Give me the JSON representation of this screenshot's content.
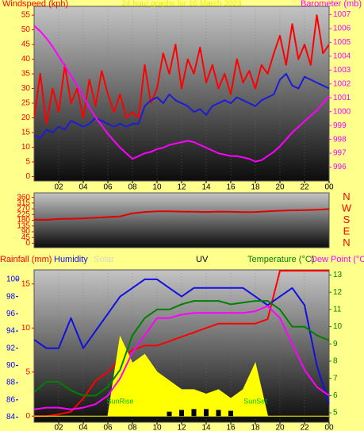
{
  "chart_data": [
    {
      "type": "line",
      "title": "24 hour graphs for 10 March 2023",
      "ylabel": "Windspeed (kph)",
      "y2label": "Barometer (mb)",
      "x": [
        0,
        0.5,
        1,
        1.5,
        2,
        2.5,
        3,
        3.5,
        4,
        4.5,
        5,
        5.5,
        6,
        6.5,
        7,
        7.5,
        8,
        8.5,
        9,
        9.5,
        10,
        10.5,
        11,
        11.5,
        12,
        12.5,
        13,
        13.5,
        14,
        14.5,
        15,
        15.5,
        16,
        16.5,
        17,
        17.5,
        18,
        18.5,
        19,
        19.5,
        20,
        20.5,
        21,
        21.5,
        22,
        22.5,
        23,
        23.5,
        24
      ],
      "xlim": [
        0,
        24
      ],
      "xticks": [
        {
          "value": 2,
          "label": "02"
        },
        {
          "value": 4,
          "label": "04"
        },
        {
          "value": 6,
          "label": "06"
        },
        {
          "value": 8,
          "label": "08"
        },
        10,
        12,
        14,
        16,
        18,
        20,
        22,
        {
          "value": 24,
          "label": "00"
        }
      ],
      "ylim": [
        -1.5,
        58
      ],
      "yticks": [
        0,
        5,
        10,
        15,
        20,
        25,
        30,
        35,
        40,
        45,
        50,
        55
      ],
      "y2lim": [
        995,
        1007.6
      ],
      "y2ticks": [
        996,
        997,
        998,
        999,
        1000,
        1001,
        1002,
        1003,
        1004,
        1005,
        1006,
        1007
      ],
      "series": [
        {
          "color": "#ff0000",
          "values": [
            20,
            35,
            18,
            30,
            22,
            38,
            25,
            30,
            20,
            33,
            24,
            36,
            28,
            22,
            28,
            20,
            22,
            20,
            38,
            25,
            30,
            42,
            35,
            45,
            30,
            40,
            35,
            44,
            32,
            38,
            30,
            35,
            28,
            40,
            32,
            36,
            30,
            38,
            35,
            42,
            48,
            38,
            52,
            40,
            45,
            38,
            55,
            42,
            45
          ]
        },
        {
          "color": "#1c1cd8",
          "values": [
            14,
            13,
            16,
            15,
            17,
            16,
            19,
            18,
            17,
            18,
            20,
            19,
            18,
            17,
            18,
            17,
            18,
            18,
            24,
            26,
            27,
            25,
            28,
            26,
            25,
            24,
            22,
            23,
            21,
            24,
            25,
            26,
            25,
            27,
            26,
            25,
            24,
            26,
            27,
            28,
            33,
            35,
            31,
            30,
            34,
            33,
            32,
            31,
            30
          ]
        },
        {
          "color": "#ff00ff",
          "axis": "y2",
          "values": [
            1006.2,
            1005.8,
            1005.3,
            1004.7,
            1004,
            1003.3,
            1002.6,
            1001.9,
            1001.1,
            1000.3,
            999.6,
            999,
            998.4,
            997.9,
            997.4,
            997,
            996.6,
            996.8,
            997,
            997.1,
            997.3,
            997.4,
            997.6,
            997.7,
            997.8,
            997.9,
            997.8,
            997.6,
            997.4,
            997.2,
            997,
            996.9,
            996.8,
            996.8,
            996.7,
            996.6,
            996.4,
            996.5,
            996.8,
            997.1,
            997.5,
            998,
            998.5,
            998.9,
            999.3,
            999.7,
            1000.1,
            1000.6,
            1001.1
          ]
        }
      ]
    },
    {
      "type": "line",
      "x": [
        0,
        1,
        2,
        3,
        4,
        5,
        6,
        7,
        8,
        9,
        10,
        11,
        12,
        13,
        14,
        15,
        16,
        17,
        18,
        19,
        20,
        21,
        22,
        23,
        24
      ],
      "xlim": [
        0,
        24
      ],
      "ylim": [
        -35,
        395
      ],
      "yticks": [
        0,
        45,
        90,
        135,
        180,
        225,
        270,
        315,
        360
      ],
      "y2lim": [
        -35,
        395
      ],
      "y2ticks": [
        {
          "value": 360,
          "label": "N"
        },
        {
          "value": 270,
          "label": "W"
        },
        {
          "value": 180,
          "label": "S"
        },
        {
          "value": 90,
          "label": "E"
        },
        {
          "value": 0,
          "label": "N"
        }
      ],
      "series": [
        {
          "color": "#e00000",
          "values": [
            185,
            183,
            190,
            192,
            195,
            200,
            205,
            210,
            235,
            245,
            250,
            250,
            248,
            247,
            245,
            248,
            246,
            244,
            245,
            250,
            255,
            258,
            260,
            262,
            268
          ]
        }
      ]
    },
    {
      "type": "line",
      "x": [
        0,
        1,
        2,
        3,
        4,
        5,
        6,
        7,
        8,
        9,
        10,
        11,
        12,
        13,
        14,
        15,
        16,
        17,
        18,
        19,
        20,
        21,
        22,
        23,
        24
      ],
      "xlim": [
        0,
        24
      ],
      "xticks": [
        {
          "value": 2,
          "label": "02"
        },
        {
          "value": 4,
          "label": "04"
        },
        {
          "value": 6,
          "label": "06"
        },
        {
          "value": 8,
          "label": "08"
        },
        10,
        12,
        14,
        16,
        18,
        20,
        22,
        {
          "value": 24,
          "label": "00"
        }
      ],
      "ylim": [
        -0.7,
        16.6
      ],
      "yticks": [
        0,
        5,
        10,
        15
      ],
      "y2lim": [
        4.45,
        13.3
      ],
      "y2ticks": [
        5,
        6,
        7,
        8,
        9,
        10,
        11,
        12,
        13
      ],
      "y3lim": [
        83.4,
        101.1
      ],
      "y3ticks": [
        84,
        86,
        88,
        90,
        92,
        94,
        96,
        98,
        100
      ],
      "annotations": [
        "SunRise",
        "SunSet"
      ],
      "series": [
        {
          "name": "Rainfall (mm)",
          "color": "#ff0000",
          "values": [
            0,
            0,
            0.2,
            0.5,
            2,
            4,
            5,
            6.5,
            7.5,
            8,
            8,
            8.5,
            9,
            9.5,
            10,
            10.5,
            10.5,
            10.5,
            10.5,
            11,
            16.5,
            16.5,
            16.5,
            16.5,
            16.5
          ]
        },
        {
          "name": "Humidity",
          "color": "#1010e0",
          "axis": "y3",
          "values": [
            93,
            92,
            92,
            95.5,
            92,
            94,
            96,
            98,
            99,
            100,
            100,
            99,
            98,
            99,
            99,
            99,
            99,
            99,
            98,
            97,
            98,
            99,
            97,
            90,
            85.5
          ]
        },
        {
          "name": "Solar",
          "color": "#ffff00",
          "style": "area",
          "values": [
            0,
            0,
            0,
            0,
            0,
            0,
            0,
            9,
            6,
            7,
            5,
            4,
            3,
            3,
            2.5,
            3,
            2,
            3,
            6,
            0,
            0,
            0,
            0,
            0,
            0
          ]
        },
        {
          "name": "UV",
          "color": "#000000",
          "style": "bars",
          "values": [
            0,
            0,
            0,
            0,
            0,
            0,
            0,
            0,
            0,
            0,
            0,
            0.5,
            0.7,
            0.8,
            0.8,
            0.7,
            0.6,
            0,
            0,
            0,
            0,
            0,
            0,
            0,
            0
          ]
        },
        {
          "name": "Temperature (°C)",
          "color": "#008000",
          "axis": "y2",
          "values": [
            6.2,
            6.8,
            6.8,
            6.3,
            6,
            6,
            6.5,
            7.5,
            9.5,
            10.5,
            11,
            11,
            11.3,
            11.5,
            11.5,
            11.5,
            11.3,
            11.4,
            11.5,
            11.5,
            11,
            10,
            10,
            9.5,
            9.2
          ]
        },
        {
          "name": "Dew Point (°C)",
          "color": "#ff00ff",
          "axis": "y2",
          "values": [
            5.2,
            5.3,
            5.3,
            5.2,
            5.3,
            5.5,
            6,
            7,
            8.5,
            9.5,
            10.5,
            10.5,
            10.7,
            10.8,
            10.8,
            10.8,
            10.8,
            10.8,
            10.9,
            11.2,
            10.5,
            9,
            7.5,
            6.5,
            6
          ]
        }
      ]
    }
  ]
}
